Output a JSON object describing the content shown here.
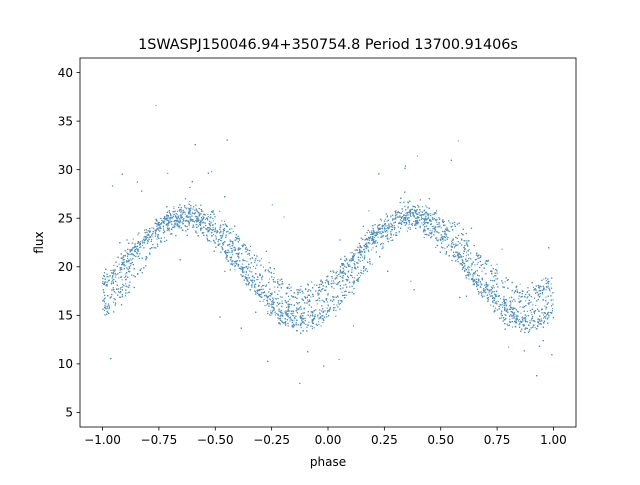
{
  "chart_data": {
    "type": "scatter",
    "title": "1SWASPJ150046.94+350754.8 Period 13700.91406s",
    "xlabel": "phase",
    "ylabel": "flux",
    "xlim": [
      -1.1,
      1.1
    ],
    "ylim": [
      3.5,
      41.5
    ],
    "xticks": [
      -1.0,
      -0.75,
      -0.5,
      -0.25,
      0.0,
      0.25,
      0.5,
      0.75,
      1.0
    ],
    "xtick_labels": [
      "−1.00",
      "−0.75",
      "−0.50",
      "−0.25",
      "0.00",
      "0.25",
      "0.50",
      "0.75",
      "1.00"
    ],
    "yticks": [
      5,
      10,
      15,
      20,
      25,
      30,
      35,
      40
    ],
    "ytick_labels": [
      "5",
      "10",
      "15",
      "20",
      "25",
      "30",
      "35",
      "40"
    ],
    "grid": false,
    "legend": "none",
    "marker_color": "#4c8fbf",
    "curve_model": {
      "description": "Folded light curve, plotted twice over phase -1..1",
      "components": [
        {
          "max": 25.7,
          "min": 13.9,
          "phase_of_max": 0.37
        },
        {
          "max": 25.3,
          "min": 15.0,
          "phase_of_max": 0.35
        },
        {
          "max": 24.6,
          "min": 16.3,
          "phase_of_max": 0.33
        },
        {
          "max": 25.9,
          "min": 17.5,
          "phase_of_max": 0.39
        },
        {
          "max": 24.9,
          "min": 14.4,
          "phase_of_max": 0.41
        }
      ]
    },
    "points_per_unit_phase": 4000
  }
}
